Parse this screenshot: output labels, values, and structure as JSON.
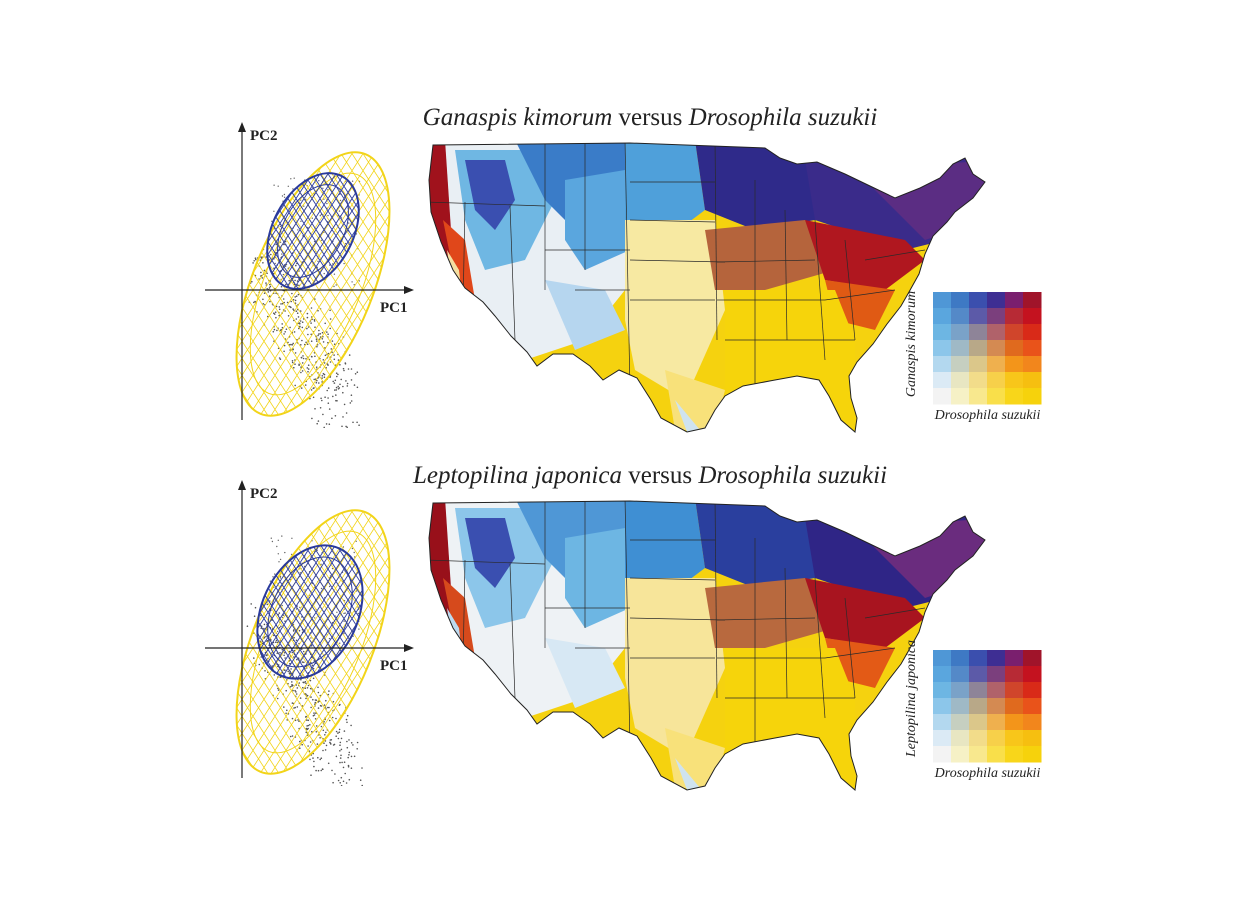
{
  "panels": [
    {
      "title_genus": "Ganaspis kimorum",
      "title_mid": " versus ",
      "title_host": "Drosophila suzukii",
      "pca": {
        "x_label": "PC1",
        "y_label": "PC2"
      },
      "legend": {
        "x_label": "Drosophila suzukii",
        "y_label": "Ganaspis kimorum"
      }
    },
    {
      "title_genus": "Leptopilina japonica",
      "title_mid": " versus ",
      "title_host": "Drosophila suzukii",
      "pca": {
        "x_label": "PC1",
        "y_label": "PC2"
      },
      "legend": {
        "x_label": "Drosophila suzukii",
        "y_label": "Leptopilina japonica"
      }
    }
  ],
  "colors": {
    "parasitoid_ellipse": "#2a3a9c",
    "host_ellipse": "#f2d419",
    "points": "#555555",
    "high_both": "#8b0a18",
    "high_parasitoid": "#2b1a78",
    "high_host": "#f5d60a",
    "low_both": "#f1f1f1",
    "mid_parasitoid": "#3aa3dc",
    "mid_host": "#e35a16"
  },
  "legend_grid": [
    [
      "#4f97d6",
      "#3e79c4",
      "#3b4fae",
      "#3e2e93",
      "#7a1f6e",
      "#a0142a"
    ],
    [
      "#5aa6de",
      "#5489c8",
      "#5c5aa8",
      "#7b3f7d",
      "#b72a35",
      "#c4121f"
    ],
    [
      "#6db6e3",
      "#7aa2c8",
      "#8e8498",
      "#b0626a",
      "#d0452b",
      "#d92a18"
    ],
    [
      "#8cc6ea",
      "#9fb9c6",
      "#b8a888",
      "#d48a52",
      "#e06a1e",
      "#e9531a"
    ],
    [
      "#b3d8ef",
      "#c6cfc0",
      "#dbc78a",
      "#efb04e",
      "#f3951a",
      "#f2861c"
    ],
    [
      "#dbeaf5",
      "#e8e6c2",
      "#f2dc8a",
      "#f7d04a",
      "#f8c61a",
      "#f6bf10"
    ],
    [
      "#f3f3f3",
      "#f6f1c6",
      "#f8e88e",
      "#f9df4a",
      "#f8d61a",
      "#f6d20c"
    ]
  ]
}
